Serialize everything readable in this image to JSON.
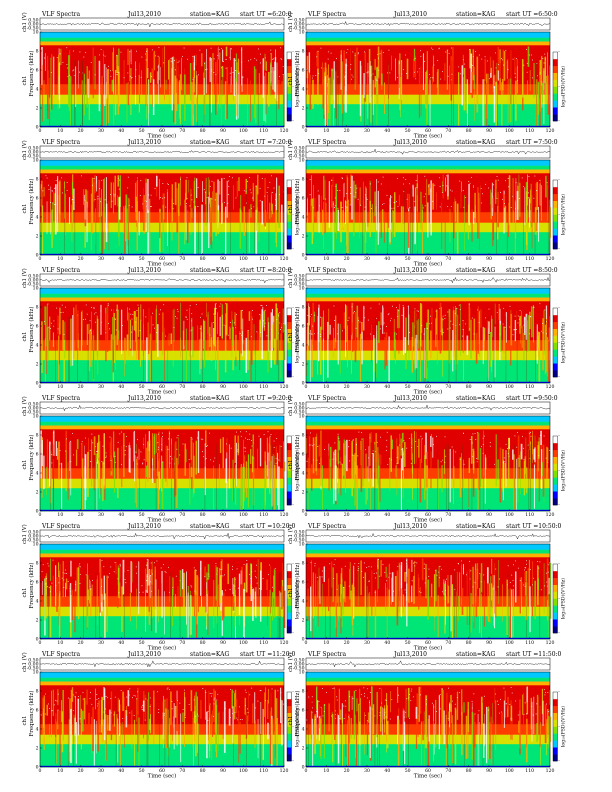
{
  "chart_data": {
    "type": "heatmap",
    "title_prefix": "VLF Spectra",
    "date": "Jul13,2010",
    "station": "station=KAG",
    "start_prefix": "start  UT  =",
    "xlabel": "Time  (sec)",
    "ylabel": "Frequency  (kHz)",
    "ylabel_channel": "ch1",
    "waveform_label": "ch1 (V)",
    "colorbar_label": "log₁₀(PSD)(V²/Hz)",
    "xlim": [
      0,
      120
    ],
    "ylim": [
      0,
      10
    ],
    "waveform_ylim": [
      -0.5,
      0.5
    ],
    "x_ticks": [
      "0",
      "10",
      "20",
      "30",
      "40",
      "50",
      "60",
      "70",
      "80",
      "90",
      "100",
      "110",
      "120"
    ],
    "y_ticks": [
      "0",
      "2",
      "4",
      "6",
      "8",
      "10"
    ],
    "waveform_ticks": [
      "0.50",
      "0.00",
      "-0.50"
    ],
    "colorbar_ticks": [
      "-",
      "-",
      "-"
    ],
    "colormap": [
      "#000080",
      "#0000ff",
      "#00c8ff",
      "#00e676",
      "#7fe000",
      "#d8e000",
      "#ffb000",
      "#ff3c00",
      "#e00000",
      "#ffffff"
    ],
    "panels": [
      {
        "start_time": "6:20:0",
        "row": 0,
        "col": 0
      },
      {
        "start_time": "6:50:0",
        "row": 0,
        "col": 1
      },
      {
        "start_time": "7:20:0",
        "row": 1,
        "col": 0
      },
      {
        "start_time": "7:50:0",
        "row": 1,
        "col": 1
      },
      {
        "start_time": "8:20:0",
        "row": 2,
        "col": 0
      },
      {
        "start_time": "8:50:0",
        "row": 2,
        "col": 1
      },
      {
        "start_time": "9:20:0",
        "row": 3,
        "col": 0
      },
      {
        "start_time": "9:50:0",
        "row": 3,
        "col": 1
      },
      {
        "start_time": "10:20:0",
        "row": 4,
        "col": 0
      },
      {
        "start_time": "10:50:0",
        "row": 4,
        "col": 1
      },
      {
        "start_time": "11:20:0",
        "row": 5,
        "col": 0
      },
      {
        "start_time": "11:50:0",
        "row": 5,
        "col": 1
      }
    ]
  }
}
